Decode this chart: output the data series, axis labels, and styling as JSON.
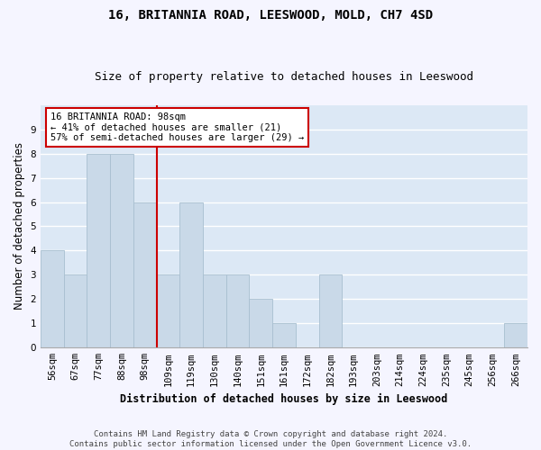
{
  "title1": "16, BRITANNIA ROAD, LEESWOOD, MOLD, CH7 4SD",
  "title2": "Size of property relative to detached houses in Leeswood",
  "xlabel": "Distribution of detached houses by size in Leeswood",
  "ylabel": "Number of detached properties",
  "categories": [
    "56sqm",
    "67sqm",
    "77sqm",
    "88sqm",
    "98sqm",
    "109sqm",
    "119sqm",
    "130sqm",
    "140sqm",
    "151sqm",
    "161sqm",
    "172sqm",
    "182sqm",
    "193sqm",
    "203sqm",
    "214sqm",
    "224sqm",
    "235sqm",
    "245sqm",
    "256sqm",
    "266sqm"
  ],
  "values": [
    4,
    3,
    8,
    8,
    6,
    3,
    6,
    3,
    3,
    2,
    1,
    0,
    3,
    0,
    0,
    0,
    0,
    0,
    0,
    0,
    1
  ],
  "bar_color": "#c9d9e8",
  "bar_edge_color": "#a8bfd0",
  "vline_index": 4,
  "vline_color": "#cc0000",
  "annotation_text": "16 BRITANNIA ROAD: 98sqm\n← 41% of detached houses are smaller (21)\n57% of semi-detached houses are larger (29) →",
  "annotation_box_color": "#cc0000",
  "ylim": [
    0,
    10
  ],
  "yticks": [
    0,
    1,
    2,
    3,
    4,
    5,
    6,
    7,
    8,
    9,
    10
  ],
  "footer": "Contains HM Land Registry data © Crown copyright and database right 2024.\nContains public sector information licensed under the Open Government Licence v3.0.",
  "background_color": "#dce8f5",
  "grid_color": "#ffffff",
  "fig_background": "#f5f5ff",
  "title1_fontsize": 10,
  "title2_fontsize": 9,
  "xlabel_fontsize": 8.5,
  "ylabel_fontsize": 8.5,
  "tick_fontsize": 7.5,
  "annot_fontsize": 7.5,
  "footer_fontsize": 6.5
}
